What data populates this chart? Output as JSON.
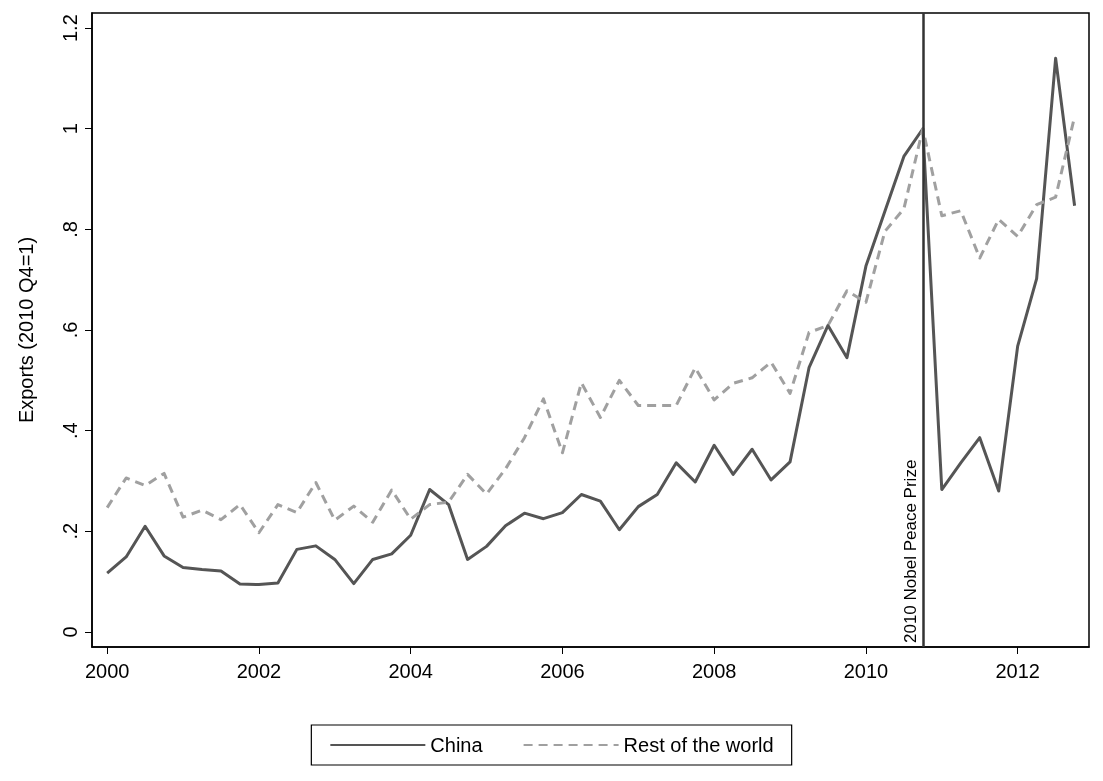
{
  "chart_data": {
    "type": "line",
    "ylabel": "Exports (2010 Q4=1)",
    "x": [
      2000,
      2000.25,
      2000.5,
      2000.75,
      2001,
      2001.25,
      2001.5,
      2001.75,
      2002,
      2002.25,
      2002.5,
      2002.75,
      2003,
      2003.25,
      2003.5,
      2003.75,
      2004,
      2004.25,
      2004.5,
      2004.75,
      2005,
      2005.25,
      2005.5,
      2005.75,
      2006,
      2006.25,
      2006.5,
      2006.75,
      2007,
      2007.25,
      2007.5,
      2007.75,
      2008,
      2008.25,
      2008.5,
      2008.75,
      2009,
      2009.25,
      2009.5,
      2009.75,
      2010,
      2010.25,
      2010.5,
      2010.75,
      2011,
      2011.25,
      2011.5,
      2011.75,
      2012,
      2012.25,
      2012.5,
      2012.75
    ],
    "series": [
      {
        "name": "China",
        "color": "#555555",
        "line_style": "solid",
        "values": [
          0.117,
          0.149,
          0.21,
          0.151,
          0.128,
          0.124,
          0.121,
          0.095,
          0.094,
          0.097,
          0.164,
          0.171,
          0.144,
          0.096,
          0.144,
          0.155,
          0.192,
          0.283,
          0.253,
          0.144,
          0.17,
          0.211,
          0.236,
          0.225,
          0.237,
          0.273,
          0.26,
          0.203,
          0.249,
          0.273,
          0.336,
          0.298,
          0.371,
          0.313,
          0.363,
          0.302,
          0.338,
          0.525,
          0.609,
          0.545,
          0.727,
          0.836,
          0.945,
          1.0,
          0.283,
          0.336,
          0.386,
          0.28,
          0.568,
          0.702,
          1.14,
          0.847
        ]
      },
      {
        "name": "Rest of the world",
        "color": "#a0a0a0",
        "line_style": "dashed",
        "values": [
          0.247,
          0.306,
          0.291,
          0.315,
          0.228,
          0.242,
          0.223,
          0.253,
          0.197,
          0.253,
          0.237,
          0.297,
          0.222,
          0.25,
          0.218,
          0.282,
          0.224,
          0.253,
          0.258,
          0.313,
          0.274,
          0.324,
          0.386,
          0.463,
          0.356,
          0.495,
          0.426,
          0.5,
          0.45,
          0.45,
          0.45,
          0.525,
          0.461,
          0.494,
          0.505,
          0.536,
          0.474,
          0.595,
          0.609,
          0.678,
          0.655,
          0.796,
          0.841,
          1.0,
          0.827,
          0.837,
          0.743,
          0.82,
          0.786,
          0.849,
          0.864,
          1.024
        ]
      }
    ],
    "xlim": [
      1999.8,
      2012.94
    ],
    "xticks": [
      2000,
      2002,
      2004,
      2006,
      2008,
      2010,
      2012
    ],
    "ylim": [
      -0.03,
      1.23
    ],
    "yticks": [
      {
        "value": 0,
        "label": "0"
      },
      {
        "value": 0.2,
        "label": ".2"
      },
      {
        "value": 0.4,
        "label": ".4"
      },
      {
        "value": 0.6,
        "label": ".6"
      },
      {
        "value": 0.8,
        "label": ".8"
      },
      {
        "value": 1,
        "label": "1"
      },
      {
        "value": 1.2,
        "label": "1.2"
      }
    ],
    "ref_lines": [
      {
        "axis": "x",
        "value": 2010.75,
        "label": "2010 Nobel Peace Prize",
        "color": "#333333",
        "line_style": "solid"
      }
    ],
    "marker": "none",
    "grid": false,
    "legend": "bottom"
  }
}
